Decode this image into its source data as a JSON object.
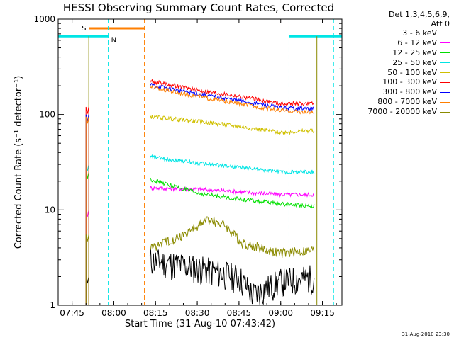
{
  "chart_data": {
    "type": "line",
    "title": "HESSI Observing Summary Count Rates, Corrected",
    "xlabel": "Start Time (31-Aug-10 07:43:42)",
    "ylabel": "Corrected Count Rate (s⁻¹ detector⁻¹)",
    "yscale": "log",
    "ylim": [
      1,
      1000
    ],
    "xlim": [
      "07:40",
      "09:22"
    ],
    "x_ticks": [
      "07:45",
      "08:00",
      "08:15",
      "08:30",
      "08:45",
      "09:00",
      "09:15"
    ],
    "y_ticks": [
      "1",
      "10",
      "100",
      "1000"
    ],
    "legend_header": [
      "Det 1,3,4,5,6,9,",
      "Att 0"
    ],
    "legend_position": "right-outside",
    "markers": {
      "saa": {
        "label": "S",
        "start": "07:51",
        "end": "08:11",
        "color": "#ff7f00"
      },
      "night": {
        "label": "N",
        "start": "07:40",
        "end": "07:58",
        "color": "#00e5e5"
      },
      "night_2": {
        "start": "09:03",
        "end": "09:22",
        "color": "#00e5e5"
      },
      "dashed_lines": [
        {
          "t": "07:58",
          "color": "#00e5e5"
        },
        {
          "t": "08:11",
          "color": "#ff7f00"
        },
        {
          "t": "09:03",
          "color": "#00e5e5"
        },
        {
          "t": "09:19",
          "color": "#00e5e5"
        }
      ],
      "solid_lines": [
        {
          "t": "07:51",
          "color": "#8b8b00"
        },
        {
          "t": "09:13",
          "color": "#8b8b00"
        }
      ]
    },
    "series": [
      {
        "name": "3 - 6 keV",
        "color": "#000000",
        "points": [
          [
            "08:13",
            3.0
          ],
          [
            "08:30",
            2.5
          ],
          [
            "08:45",
            2.0
          ],
          [
            "08:50",
            1.3
          ],
          [
            "09:00",
            1.8
          ],
          [
            "09:12",
            2.0
          ]
        ]
      },
      {
        "name": "6 - 12 keV",
        "color": "#ff00ff",
        "points": [
          [
            "08:13",
            17
          ],
          [
            "08:30",
            16.5
          ],
          [
            "08:45",
            15.5
          ],
          [
            "09:00",
            14.5
          ],
          [
            "09:12",
            14.5
          ]
        ]
      },
      {
        "name": "12 - 25 keV",
        "color": "#00e000",
        "points": [
          [
            "08:13",
            21
          ],
          [
            "08:30",
            15
          ],
          [
            "08:45",
            13
          ],
          [
            "09:00",
            11.5
          ],
          [
            "09:12",
            11
          ]
        ]
      },
      {
        "name": "25 - 50 keV",
        "color": "#00e5e5",
        "points": [
          [
            "08:13",
            36
          ],
          [
            "08:30",
            31
          ],
          [
            "08:45",
            28
          ],
          [
            "09:00",
            25
          ],
          [
            "09:12",
            25
          ]
        ]
      },
      {
        "name": "50 - 100 keV",
        "color": "#d0c000",
        "points": [
          [
            "08:13",
            95
          ],
          [
            "08:30",
            85
          ],
          [
            "08:45",
            75
          ],
          [
            "09:00",
            65
          ],
          [
            "09:12",
            68
          ]
        ]
      },
      {
        "name": "100 - 300 keV",
        "color": "#ff0000",
        "points": [
          [
            "08:13",
            225
          ],
          [
            "08:30",
            180
          ],
          [
            "08:45",
            155
          ],
          [
            "09:00",
            130
          ],
          [
            "09:12",
            130
          ]
        ]
      },
      {
        "name": "300 - 800 keV",
        "color": "#0000ff",
        "points": [
          [
            "08:13",
            205
          ],
          [
            "08:30",
            165
          ],
          [
            "08:45",
            140
          ],
          [
            "09:00",
            118
          ],
          [
            "09:12",
            115
          ]
        ]
      },
      {
        "name": "800 - 7000 keV",
        "color": "#ff7f00",
        "points": [
          [
            "08:13",
            195
          ],
          [
            "08:30",
            155
          ],
          [
            "08:45",
            130
          ],
          [
            "09:00",
            110
          ],
          [
            "09:12",
            105
          ]
        ]
      },
      {
        "name": "7000 - 20000 keV",
        "color": "#8b8b00",
        "points": [
          [
            "08:13",
            4
          ],
          [
            "08:25",
            5.5
          ],
          [
            "08:34",
            8
          ],
          [
            "08:40",
            7
          ],
          [
            "08:46",
            4.5
          ],
          [
            "09:00",
            3.5
          ],
          [
            "09:12",
            3.8
          ]
        ]
      }
    ],
    "pre_segment": {
      "start": "07:50",
      "end": "07:51",
      "values": {
        "3 - 6 keV": 2.0,
        "6 - 12 keV": 10.0,
        "12 - 25 keV": 25.0,
        "25 - 50 keV": 30.0,
        "50 - 100 keV": 95.0,
        "100 - 300 keV": 120.0,
        "300 - 800 keV": 100.0,
        "800 - 7000 keV": 95.0,
        "7000 - 20000 keV": 5.5
      }
    }
  },
  "footer": {
    "date_stamp": "31-Aug-2010 23:30"
  }
}
